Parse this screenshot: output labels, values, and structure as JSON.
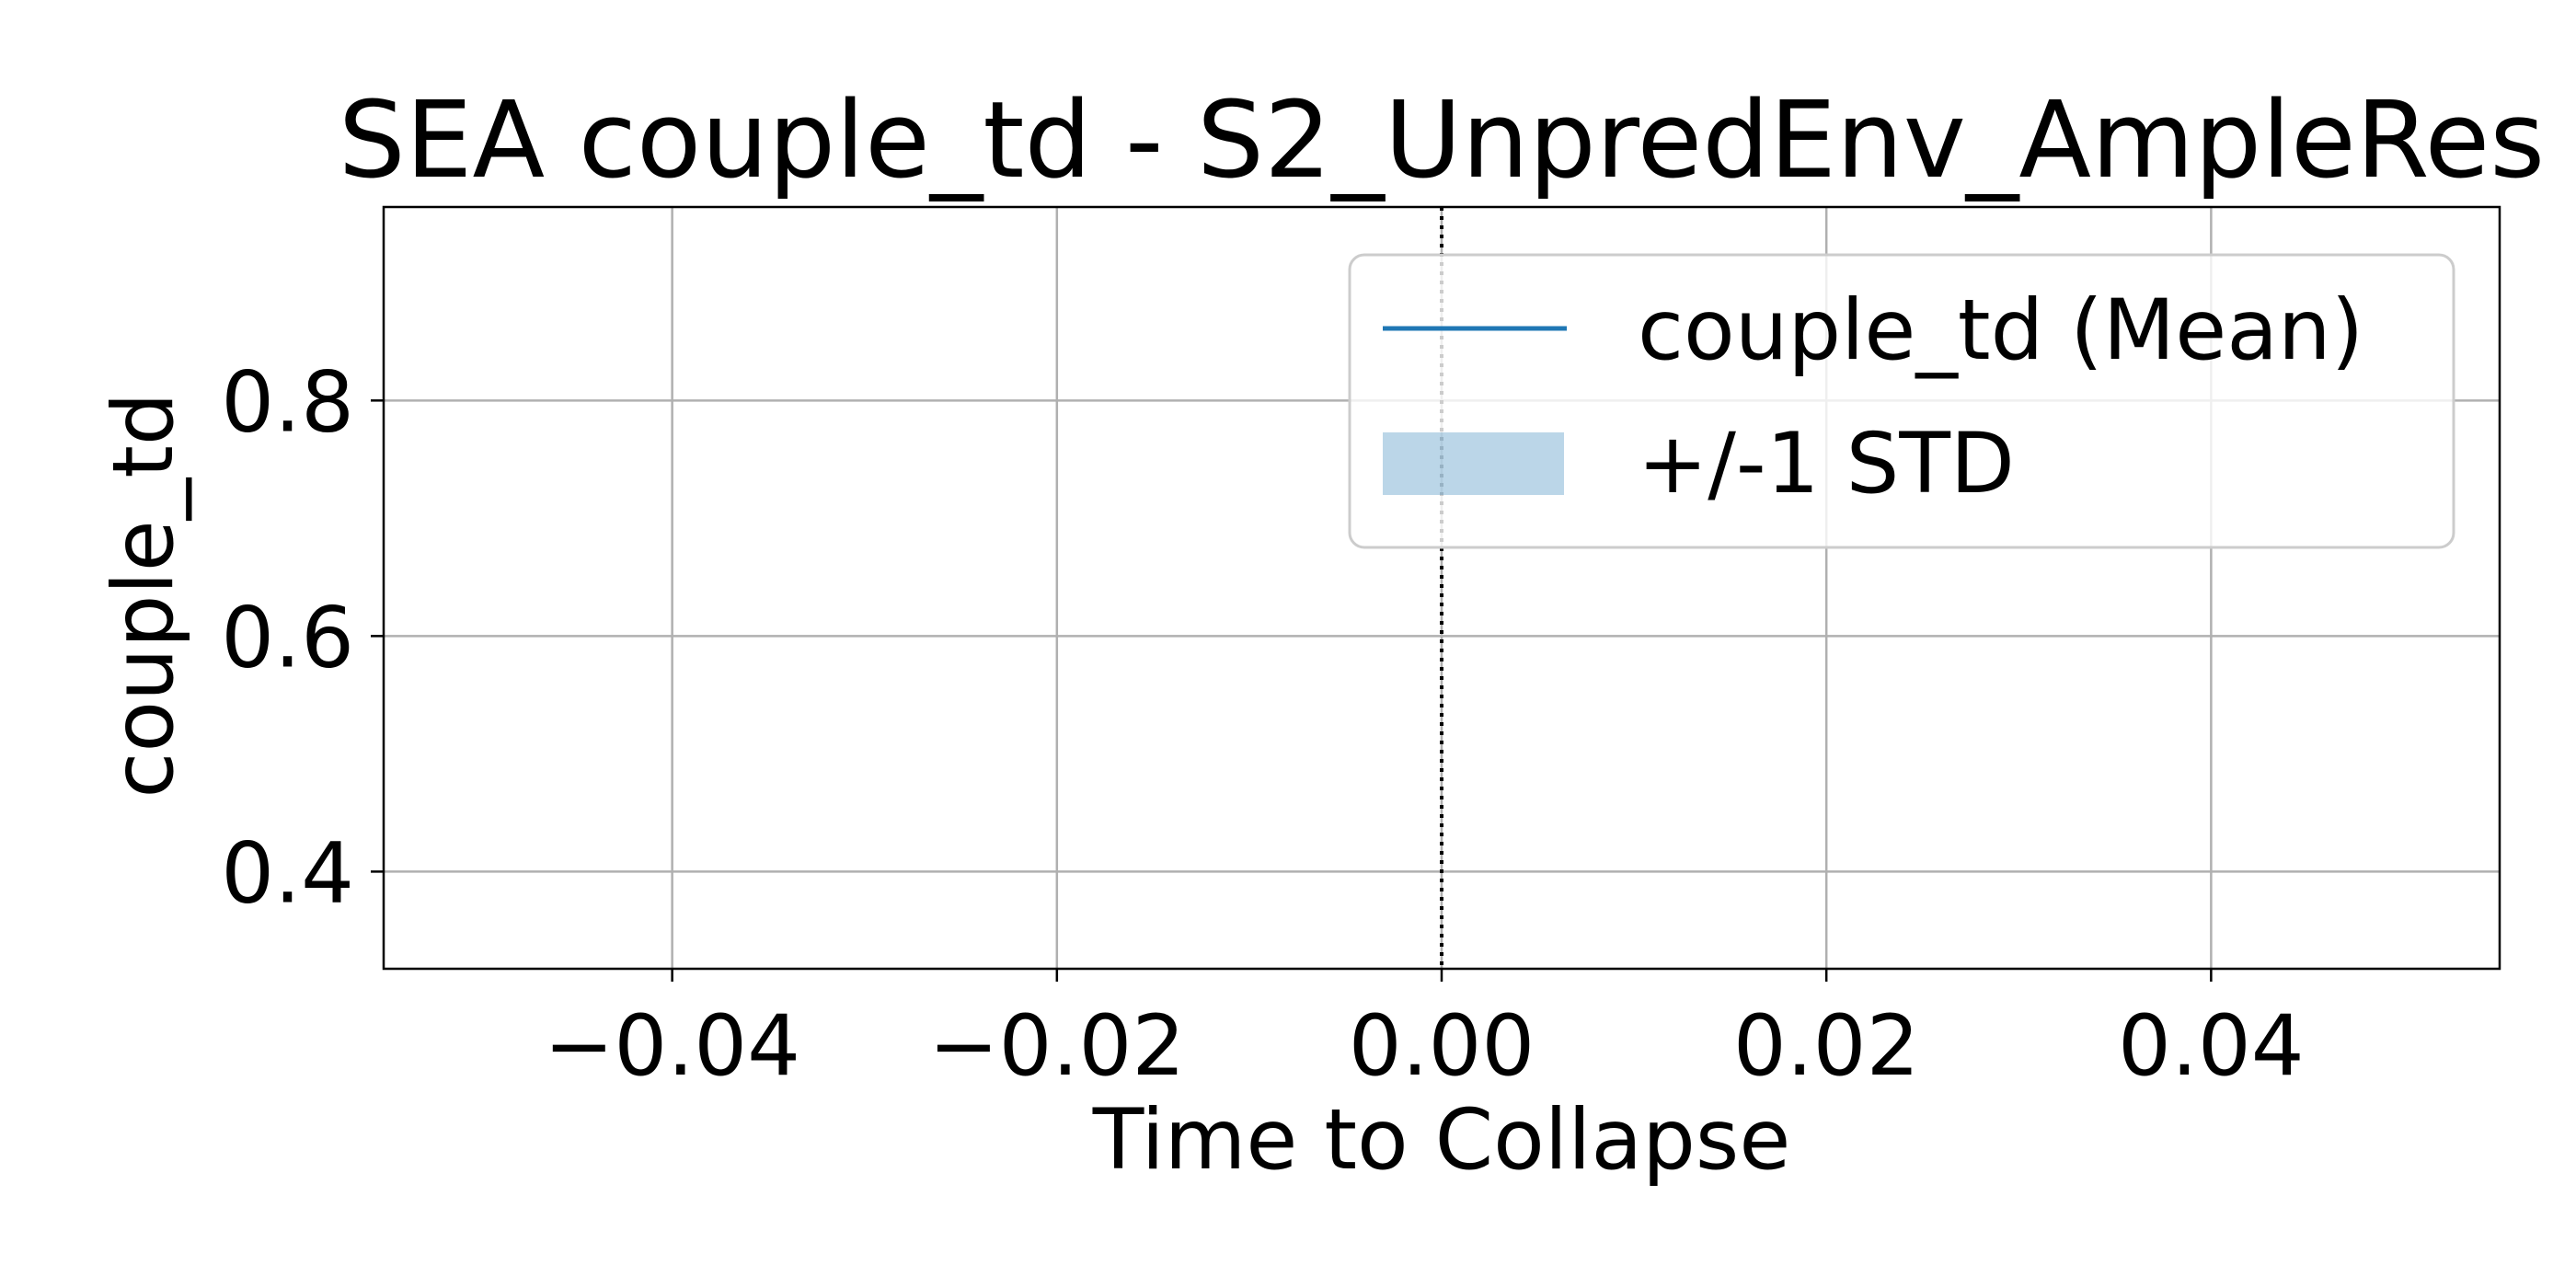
{
  "chart_data": {
    "type": "line",
    "title": "SEA couple_td - S2_UnpredEnv_AmpleRes",
    "xlabel": "Time to Collapse",
    "ylabel": "couple_td",
    "xlim": [
      -0.055,
      0.055
    ],
    "ylim": [
      0.3175,
      0.9643
    ],
    "xticks": [
      -0.04,
      -0.02,
      0.0,
      0.02,
      0.04
    ],
    "xtick_labels": [
      "−0.04",
      "−0.02",
      "0.00",
      "0.02",
      "0.04"
    ],
    "yticks": [
      0.4,
      0.6,
      0.8
    ],
    "ytick_labels": [
      "0.4",
      "0.6",
      "0.8"
    ],
    "grid": true,
    "vline": {
      "x": 0.0,
      "style": "dotted",
      "color": "#000000"
    },
    "legend": {
      "placement": "upper right",
      "entries": [
        {
          "label": "couple_td (Mean)",
          "kind": "line",
          "color": "#1f77b4"
        },
        {
          "label": "+/-1 STD",
          "kind": "patch",
          "color": "#1f77b4",
          "alpha": 0.3
        }
      ]
    },
    "series": [
      {
        "name": "couple_td (Mean)",
        "x": [],
        "y": [],
        "color": "#1f77b4"
      }
    ],
    "band": {
      "name": "+/-1 STD",
      "x": [],
      "lower": [],
      "upper": []
    }
  }
}
